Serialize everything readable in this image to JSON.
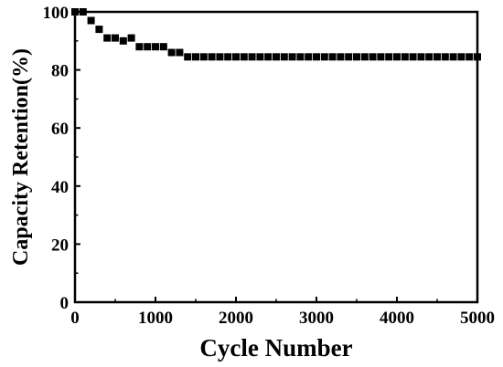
{
  "chart_data": {
    "type": "scatter",
    "title": "",
    "xlabel": "Cycle Number",
    "ylabel": "Capacity Retention(%)",
    "xlim": [
      0,
      5000
    ],
    "ylim": [
      0,
      100
    ],
    "xticks": [
      0,
      1000,
      2000,
      3000,
      4000,
      5000
    ],
    "yticks": [
      0,
      20,
      40,
      60,
      80,
      100
    ],
    "xtick_labels": [
      "0",
      "1000",
      "2000",
      "3000",
      "4000",
      "5000"
    ],
    "ytick_labels": [
      "0",
      "20",
      "40",
      "60",
      "80",
      "100"
    ],
    "grid": false,
    "legend": "none",
    "marker": "square",
    "color": "#000000",
    "series": [
      {
        "x": [
          0,
          100,
          200,
          300,
          400,
          500,
          600,
          700,
          800,
          900,
          1000,
          1100,
          1200,
          1300,
          1400,
          1500,
          1600,
          1700,
          1800,
          1900,
          2000,
          2100,
          2200,
          2300,
          2400,
          2500,
          2600,
          2700,
          2800,
          2900,
          3000,
          3100,
          3200,
          3300,
          3400,
          3500,
          3600,
          3700,
          3800,
          3900,
          4000,
          4100,
          4200,
          4300,
          4400,
          4500,
          4600,
          4700,
          4800,
          4900,
          5000
        ],
        "y": [
          100,
          100,
          97,
          94,
          91,
          91,
          90,
          91,
          88,
          88,
          88,
          88,
          86,
          86,
          84.5,
          84.5,
          84.5,
          84.5,
          84.5,
          84.5,
          84.5,
          84.5,
          84.5,
          84.5,
          84.5,
          84.5,
          84.5,
          84.5,
          84.5,
          84.5,
          84.5,
          84.5,
          84.5,
          84.5,
          84.5,
          84.5,
          84.5,
          84.5,
          84.5,
          84.5,
          84.5,
          84.5,
          84.5,
          84.5,
          84.5,
          84.5,
          84.5,
          84.5,
          84.5,
          84.5,
          84.5
        ]
      }
    ]
  }
}
